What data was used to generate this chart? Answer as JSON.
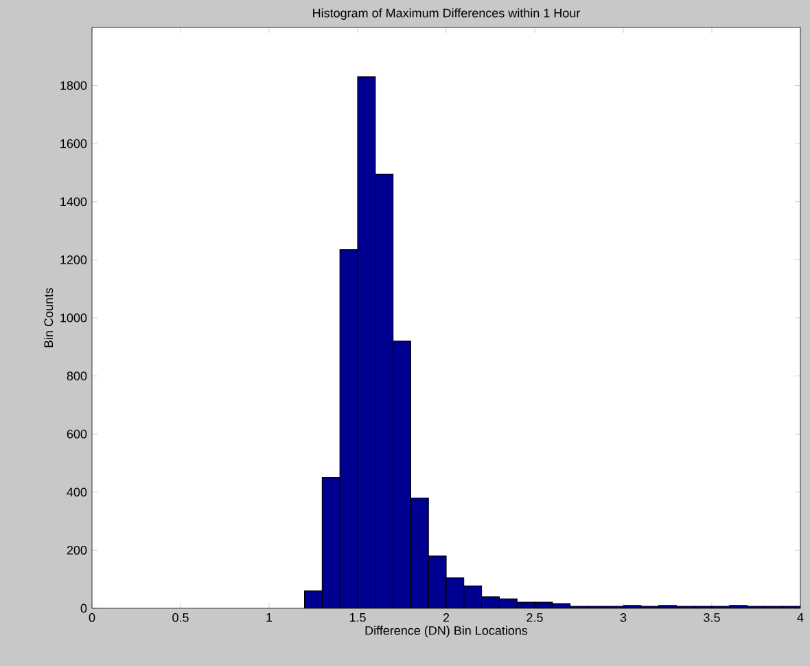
{
  "chart_data": {
    "type": "histogram",
    "title": "Histogram of Maximum Differences within 1 Hour",
    "xlabel": "Difference (DN) Bin Locations",
    "ylabel": "Bin Counts",
    "color": "#000090",
    "bins": [
      1.2,
      1.3,
      1.4,
      1.5,
      1.6,
      1.7,
      1.8,
      1.9,
      2.0,
      2.1,
      2.2,
      2.3,
      2.4,
      2.5,
      2.6,
      2.7,
      2.8,
      2.9,
      3.0,
      3.1,
      3.2,
      3.3,
      3.4,
      3.5,
      3.6,
      3.7,
      3.8,
      3.9,
      4.0
    ],
    "values": [
      60,
      450,
      1235,
      1830,
      1495,
      920,
      380,
      180,
      105,
      77,
      40,
      33,
      21,
      21,
      16,
      7,
      7,
      7,
      10,
      7,
      10,
      7,
      7,
      7,
      10,
      7,
      7,
      7
    ],
    "xlim": [
      0,
      4
    ],
    "ylim": [
      0,
      2000
    ],
    "xticks": [
      0,
      0.5,
      1,
      1.5,
      2,
      2.5,
      3,
      3.5,
      4
    ],
    "yticks": [
      0,
      200,
      400,
      600,
      800,
      1000,
      1200,
      1400,
      1600,
      1800
    ],
    "grid": false
  }
}
